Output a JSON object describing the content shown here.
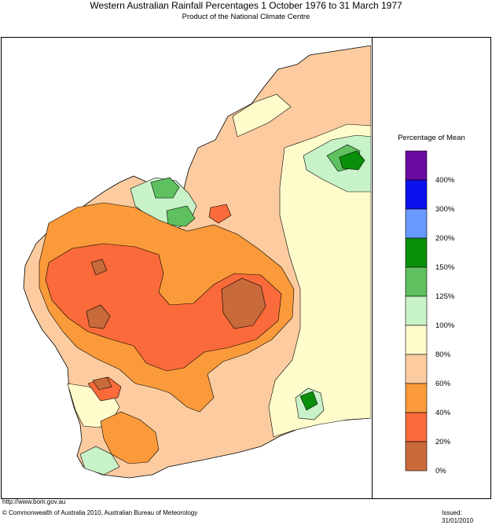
{
  "header": {
    "title": "Western Australian Rainfall Percentages 1 October 1976 to 31 March 1977",
    "subtitle": "Product of the National Climate Centre"
  },
  "legend": {
    "title": "Percentage of Mean",
    "classes": [
      {
        "label": "400%",
        "color": "#6a0aa0"
      },
      {
        "label": "300%",
        "color": "#0a12ee"
      },
      {
        "label": "200%",
        "color": "#6899ff"
      },
      {
        "label": "150%",
        "color": "#0a8f0a"
      },
      {
        "label": "125%",
        "color": "#5ec05e"
      },
      {
        "label": "100%",
        "color": "#c8f2c8"
      },
      {
        "label": "80%",
        "color": "#fffccc"
      },
      {
        "label": "60%",
        "color": "#fccca0"
      },
      {
        "label": "40%",
        "color": "#fa9a3a"
      },
      {
        "label": "20%",
        "color": "#fa6a3a"
      },
      {
        "label": "0%",
        "color": "#c86a3a"
      }
    ]
  },
  "colors": {
    "ocean": "#ffffff",
    "outline": "#000000"
  },
  "footer": {
    "url": "http://www.bom.gov.au",
    "copyright": "© Commonwealth of Australia 2010, Australian Bureau of Meteorology",
    "issued": "Issued: 31/01/2010"
  }
}
